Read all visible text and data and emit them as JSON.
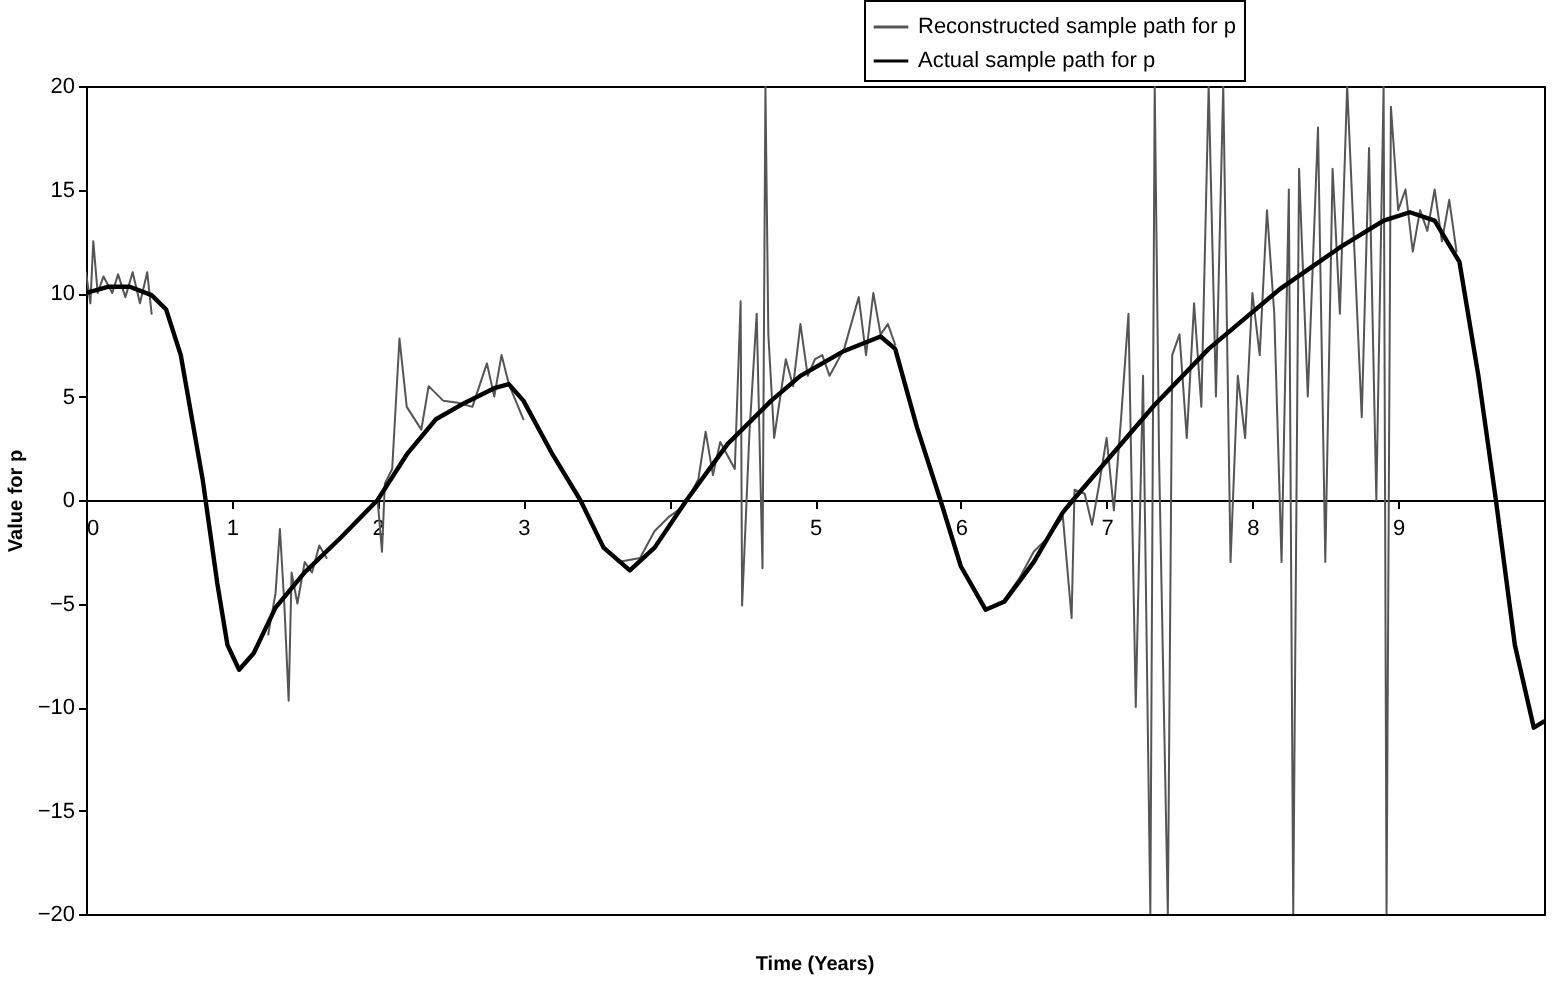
{
  "chart_data": {
    "type": "line",
    "xlabel": "Time (Years)",
    "ylabel": "Value for p",
    "xlim": [
      0,
      10
    ],
    "xticks": [
      0,
      1,
      2,
      3,
      {
        "value": 4,
        "label": null
      },
      5,
      6,
      7,
      8,
      9,
      {
        "value": 10,
        "label": null
      }
    ],
    "ylim": [
      -20,
      20
    ],
    "yticks": [
      -20,
      -15,
      -10,
      -5,
      0,
      5,
      10,
      15,
      20
    ],
    "grid": false,
    "legend": "top right",
    "marker": "none",
    "line_style": "solid",
    "series": [
      {
        "name": "Reconstructed sample path for p",
        "color": "#555555",
        "x": [
          0,
          0.03,
          0.05,
          0.08,
          0.12,
          0.18,
          0.22,
          0.27,
          0.32,
          0.37,
          0.42,
          0.45,
          0.5,
          1.25,
          1.3,
          1.33,
          1.36,
          1.39,
          1.41,
          1.45,
          1.5,
          1.55,
          1.6,
          1.65,
          1.7,
          2.0,
          2.03,
          2.05,
          2.1,
          2.15,
          2.2,
          2.3,
          2.35,
          2.45,
          2.55,
          2.65,
          2.75,
          2.8,
          2.85,
          2.9,
          3.0,
          3.05,
          3.65,
          3.8,
          3.9,
          4.0,
          4.1,
          4.2,
          4.25,
          4.3,
          4.35,
          4.45,
          4.49,
          4.5,
          4.55,
          4.6,
          4.64,
          4.66,
          4.68,
          4.72,
          4.8,
          4.85,
          4.9,
          4.95,
          5.0,
          5.05,
          5.1,
          5.2,
          5.3,
          5.35,
          5.4,
          5.45,
          5.5,
          5.55,
          5.6,
          6.3,
          6.4,
          6.5,
          6.6,
          6.7,
          6.76,
          6.78,
          6.85,
          6.9,
          6.95,
          7.0,
          7.05,
          7.1,
          7.15,
          7.2,
          7.25,
          7.3,
          7.33,
          7.36,
          7.42,
          7.45,
          7.5,
          7.55,
          7.6,
          7.65,
          7.7,
          7.75,
          7.8,
          7.85,
          7.9,
          7.95,
          8.0,
          8.05,
          8.1,
          8.15,
          8.2,
          8.25,
          8.28,
          8.32,
          8.38,
          8.45,
          8.5,
          8.55,
          8.6,
          8.65,
          8.7,
          8.75,
          8.8,
          8.85,
          8.9,
          8.92,
          8.95,
          9.0,
          9.05,
          9.1,
          9.15,
          9.2,
          9.25,
          9.3,
          9.35,
          9.4
        ],
        "values": [
          11,
          9.5,
          12.5,
          10,
          10.8,
          10,
          10.9,
          9.8,
          11,
          9.5,
          11,
          9,
          null,
          -6.5,
          -4.5,
          -1.4,
          -5,
          -9.7,
          -3.5,
          -5,
          -3,
          -3.5,
          -2.2,
          -2.8,
          null,
          0,
          -2.5,
          0.8,
          1.5,
          7.8,
          4.5,
          3.4,
          5.5,
          4.8,
          4.7,
          4.5,
          6.6,
          5,
          7,
          5.6,
          3.9,
          null,
          -3,
          -2.8,
          -1.5,
          -0.8,
          -0.3,
          1,
          3.3,
          1.2,
          2.8,
          1.5,
          9.6,
          -5.1,
          3.2,
          9,
          -3.3,
          20,
          8,
          3,
          6.8,
          5.5,
          8.5,
          6,
          6.8,
          7,
          6,
          7.3,
          9.8,
          7,
          10,
          8,
          8.5,
          7.5,
          null,
          -4.8,
          -3.8,
          -2.5,
          -1.8,
          -0.8,
          -5.7,
          0.5,
          0.3,
          -1.2,
          0.8,
          3,
          -0.5,
          4,
          9,
          -10,
          6,
          -20,
          20,
          2,
          -20,
          7,
          8,
          3,
          9.5,
          4.5,
          20,
          5,
          20,
          -3,
          6,
          3,
          10,
          7,
          14,
          9,
          -3,
          15,
          -20,
          16,
          5,
          18,
          -3,
          16,
          9,
          20,
          12,
          4,
          17,
          0,
          20,
          -20,
          19,
          14,
          15,
          12,
          14,
          13,
          15,
          12.5,
          14.5,
          12
        ]
      },
      {
        "name": "Actual sample path for p",
        "color": "#000000",
        "x": [
          0,
          0.15,
          0.3,
          0.45,
          0.55,
          0.65,
          0.8,
          0.9,
          0.97,
          1.05,
          1.15,
          1.3,
          1.5,
          1.75,
          2.0,
          2.2,
          2.4,
          2.6,
          2.8,
          2.9,
          3.0,
          3.2,
          3.39,
          3.55,
          3.73,
          3.9,
          4.12,
          4.4,
          4.7,
          4.9,
          5.2,
          5.45,
          5.55,
          5.7,
          5.86,
          6.0,
          6.17,
          6.3,
          6.5,
          6.7,
          6.77,
          7.33,
          7.7,
          8.19,
          8.6,
          8.9,
          9.08,
          9.25,
          9.42,
          9.55,
          9.67,
          9.8,
          9.93,
          10
        ],
        "values": [
          10,
          10.3,
          10.3,
          9.9,
          9.2,
          7,
          1,
          -4,
          -7,
          -8.2,
          -7.4,
          -5.2,
          -3.5,
          -1.8,
          0,
          2.2,
          3.9,
          4.7,
          5.4,
          5.6,
          4.8,
          2.2,
          0,
          -2.3,
          -3.4,
          -2.3,
          0,
          2.7,
          4.8,
          6.0,
          7.2,
          7.9,
          7.3,
          3.5,
          0,
          -3.2,
          -5.3,
          -4.9,
          -3,
          -0.6,
          0,
          4.6,
          7.3,
          10.2,
          12.2,
          13.5,
          13.9,
          13.5,
          11.5,
          6,
          0,
          -7,
          -11,
          -10.7
        ]
      }
    ]
  }
}
